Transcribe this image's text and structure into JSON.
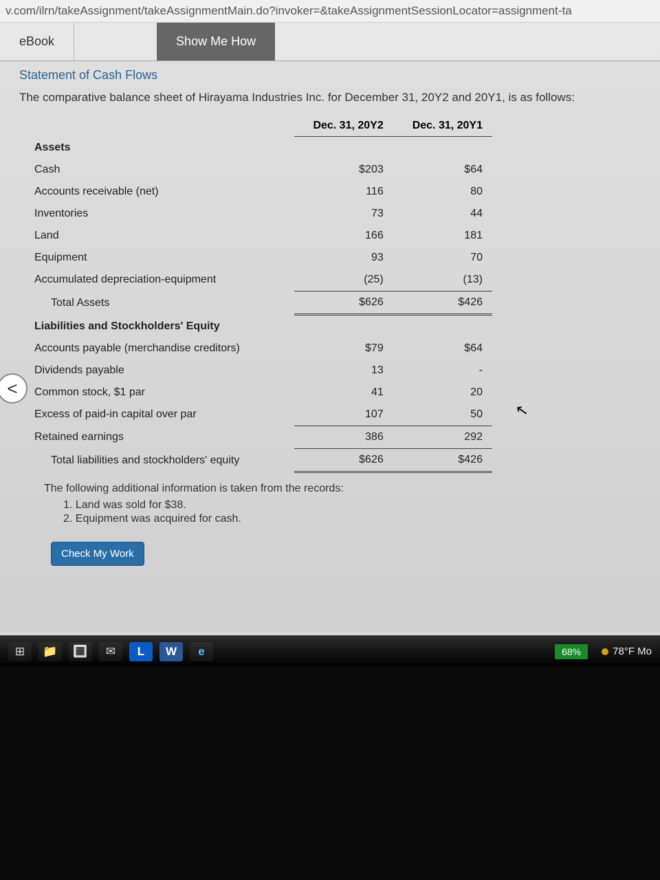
{
  "url": "v.com/ilrn/takeAssignment/takeAssignmentMain.do?invoker=&takeAssignmentSessionLocator=assignment-ta",
  "tabs": {
    "ebook": "eBook",
    "show_how": "Show Me How"
  },
  "section_title": "Statement of Cash Flows",
  "intro": "The comparative balance sheet of Hirayama Industries Inc. for December 31, 20Y2 and 20Y1, is as follows:",
  "table": {
    "col1": "Dec. 31, 20Y2",
    "col2": "Dec. 31, 20Y1",
    "assets_header": "Assets",
    "rows_assets": [
      {
        "label": "Cash",
        "y2": "$203",
        "y1": "$64"
      },
      {
        "label": "Accounts receivable (net)",
        "y2": "116",
        "y1": "80"
      },
      {
        "label": "Inventories",
        "y2": "73",
        "y1": "44"
      },
      {
        "label": "Land",
        "y2": "166",
        "y1": "181"
      },
      {
        "label": "Equipment",
        "y2": "93",
        "y1": "70"
      },
      {
        "label": "Accumulated depreciation-equipment",
        "y2": "(25)",
        "y1": "(13)"
      }
    ],
    "total_assets": {
      "label": "Total Assets",
      "y2": "$626",
      "y1": "$426"
    },
    "liab_header": "Liabilities and Stockholders' Equity",
    "rows_liab": [
      {
        "label": "Accounts payable (merchandise creditors)",
        "y2": "$79",
        "y1": "$64"
      },
      {
        "label": "Dividends payable",
        "y2": "13",
        "y1": "-"
      },
      {
        "label": "Common stock, $1 par",
        "y2": "41",
        "y1": "20"
      },
      {
        "label": "Excess of paid-in capital over par",
        "y2": "107",
        "y1": "50"
      },
      {
        "label": "Retained earnings",
        "y2": "386",
        "y1": "292"
      }
    ],
    "total_liab": {
      "label": "Total liabilities and stockholders' equity",
      "y2": "$626",
      "y1": "$426"
    }
  },
  "additional_intro": "The following additional information is taken from the records:",
  "additional": [
    "1. Land was sold for $38.",
    "2. Equipment was acquired for cash."
  ],
  "check_btn": "Check My Work",
  "nav_prev": "<",
  "taskbar": {
    "battery": "68%",
    "weather": "78°F Mo"
  },
  "icons": {
    "task_view": "⊞",
    "explorer": "📁",
    "store": "🔳",
    "mail": "✉",
    "lock": "L",
    "word": "W",
    "edge": "e"
  }
}
